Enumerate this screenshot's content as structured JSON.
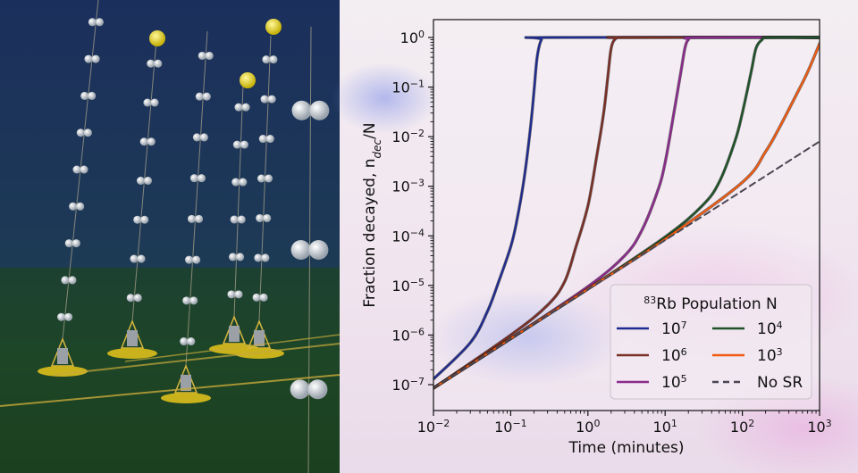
{
  "chart_data": {
    "type": "line",
    "xlabel_main": "Time (minutes)",
    "ylabel_main": "Fraction decayed, n",
    "ylabel_sub": "dec",
    "ylabel_tail": "/N",
    "xscale": "log",
    "yscale": "log",
    "xlim": [
      0.01,
      1000
    ],
    "ylim": [
      1e-07,
      1
    ],
    "x_ticks": [
      {
        "value": 0.01,
        "base": "10",
        "exp": "−2"
      },
      {
        "value": 0.1,
        "base": "10",
        "exp": "−1"
      },
      {
        "value": 1,
        "base": "10",
        "exp": "0"
      },
      {
        "value": 10,
        "base": "10",
        "exp": "1"
      },
      {
        "value": 100,
        "base": "10",
        "exp": "2"
      },
      {
        "value": 1000,
        "base": "10",
        "exp": "3"
      }
    ],
    "y_ticks": [
      {
        "value": 1,
        "base": "10",
        "exp": "0"
      },
      {
        "value": 0.1,
        "base": "10",
        "exp": "−1"
      },
      {
        "value": 0.01,
        "base": "10",
        "exp": "−2"
      },
      {
        "value": 0.001,
        "base": "10",
        "exp": "−3"
      },
      {
        "value": 0.0001,
        "base": "10",
        "exp": "−4"
      },
      {
        "value": 1e-05,
        "base": "10",
        "exp": "−5"
      },
      {
        "value": 1e-06,
        "base": "10",
        "exp": "−6"
      },
      {
        "value": 1e-07,
        "base": "10",
        "exp": "−7"
      }
    ],
    "legend": {
      "title_sup": "83",
      "title_main": "Rb Population N",
      "placement": "lower-right"
    },
    "series": [
      {
        "name_base": "10",
        "name_exp": "7",
        "color": "#1f2b8f",
        "points": [
          [
            0.01,
            1.3e-07
          ],
          [
            0.03,
            7e-07
          ],
          [
            0.05,
            3e-06
          ],
          [
            0.07,
            1.2e-05
          ],
          [
            0.1,
            6e-05
          ],
          [
            0.12,
            0.0002
          ],
          [
            0.15,
            0.0015
          ],
          [
            0.18,
            0.015
          ],
          [
            0.2,
            0.08
          ],
          [
            0.22,
            0.4
          ],
          [
            0.25,
            0.9
          ],
          [
            0.3,
            1
          ],
          [
            1000,
            1
          ]
        ]
      },
      {
        "name_base": "10",
        "name_exp": "6",
        "color": "#7a2e24",
        "points": [
          [
            0.01,
            8.5e-08
          ],
          [
            0.1,
            1e-06
          ],
          [
            0.3,
            4e-06
          ],
          [
            0.5,
            1.2e-05
          ],
          [
            0.7,
            6e-05
          ],
          [
            1,
            0.0004
          ],
          [
            1.3,
            0.004
          ],
          [
            1.6,
            0.03
          ],
          [
            1.8,
            0.15
          ],
          [
            2,
            0.6
          ],
          [
            2.3,
            0.95
          ],
          [
            3,
            1
          ],
          [
            1000,
            1
          ]
        ]
      },
      {
        "name_base": "10",
        "name_exp": "5",
        "color": "#8b2a8c",
        "points": [
          [
            0.01,
            8.5e-08
          ],
          [
            0.1,
            8.5e-07
          ],
          [
            1,
            9.5e-06
          ],
          [
            3,
            4e-05
          ],
          [
            5,
            0.00013
          ],
          [
            8,
            0.0008
          ],
          [
            10,
            0.003
          ],
          [
            13,
            0.03
          ],
          [
            16,
            0.2
          ],
          [
            18,
            0.6
          ],
          [
            20,
            0.9
          ],
          [
            25,
            1
          ],
          [
            1000,
            1
          ]
        ]
      },
      {
        "name_base": "10",
        "name_exp": "4",
        "color": "#1e5228",
        "points": [
          [
            0.01,
            8.5e-08
          ],
          [
            0.1,
            8.5e-07
          ],
          [
            1,
            8.5e-06
          ],
          [
            10,
            9.5e-05
          ],
          [
            30,
            0.0004
          ],
          [
            50,
            0.0012
          ],
          [
            80,
            0.008
          ],
          [
            100,
            0.03
          ],
          [
            130,
            0.2
          ],
          [
            150,
            0.6
          ],
          [
            180,
            0.9
          ],
          [
            220,
            1
          ],
          [
            1000,
            1
          ]
        ]
      },
      {
        "name_base": "10",
        "name_exp": "3",
        "color": "#f05a10",
        "points": [
          [
            0.01,
            8.5e-08
          ],
          [
            0.1,
            8.5e-07
          ],
          [
            1,
            8.5e-06
          ],
          [
            10,
            8.6e-05
          ],
          [
            100,
            0.0012
          ],
          [
            200,
            0.005
          ],
          [
            300,
            0.015
          ],
          [
            500,
            0.07
          ],
          [
            700,
            0.2
          ],
          [
            1000,
            0.75
          ]
        ]
      },
      {
        "name": "No SR",
        "color": "#4a4552",
        "dashed": true,
        "points": [
          [
            0.01,
            8.5e-08
          ],
          [
            1000,
            0.008
          ]
        ]
      }
    ]
  }
}
